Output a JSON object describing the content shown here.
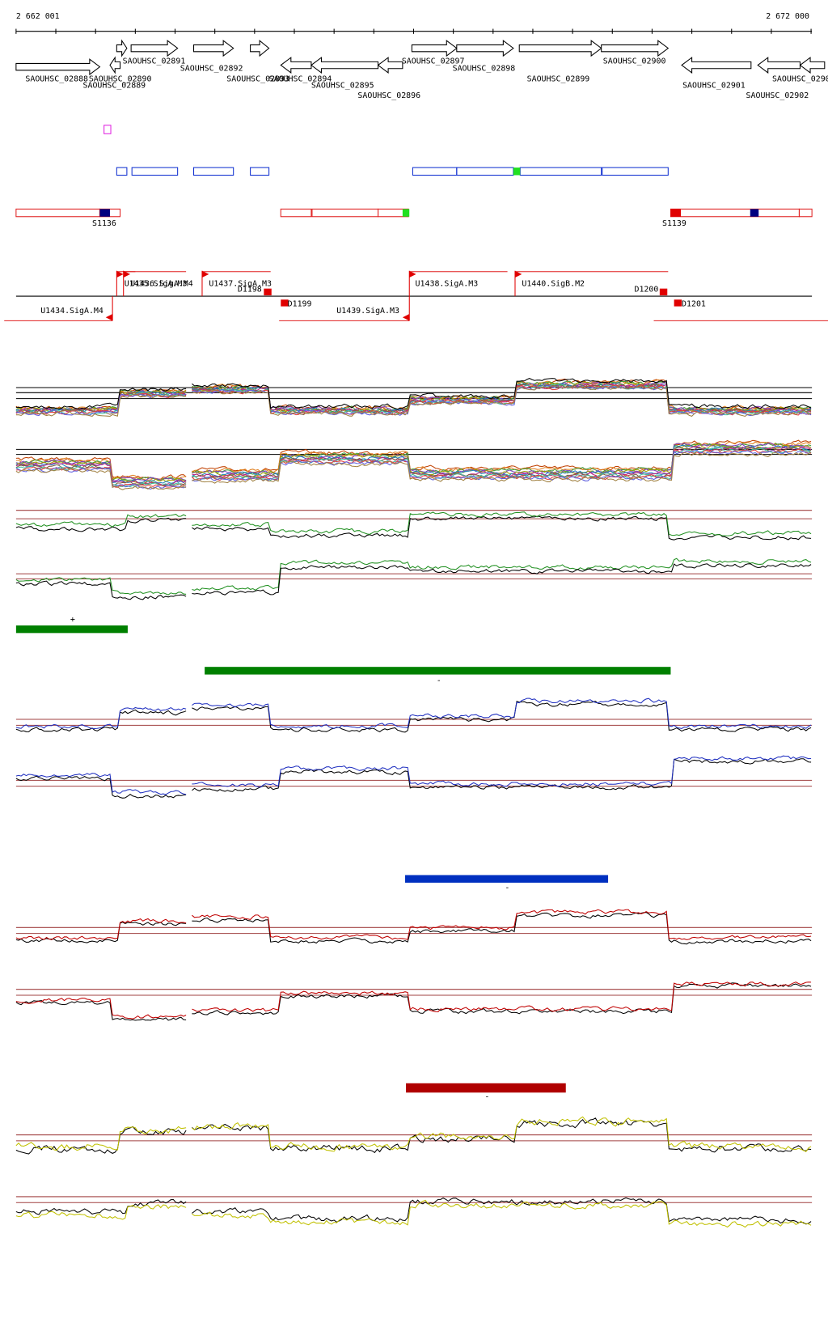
{
  "ruler": {
    "start": "2 662 001",
    "end": "2 672 000"
  },
  "genes": [
    "SAOUHSC_02888",
    "SAOUHSC_02889",
    "SAOUHSC_02890",
    "SAOUHSC_02891",
    "SAOUHSC_02892",
    "SAOUHSC_02893",
    "SAOUHSC_02894",
    "SAOUHSC_02895",
    "SAOUHSC_02896",
    "SAOUHSC_02897",
    "SAOUHSC_02898",
    "SAOUHSC_02899",
    "SAOUHSC_02900",
    "SAOUHSC_02901",
    "SAOUHSC_02902",
    "SAOUHSC_0290"
  ],
  "segments": [
    "S1136",
    "S1139"
  ],
  "promoters": [
    "U1434.SigA.M4",
    "U1435.SigA.M3",
    "U1436.SigA.M4",
    "U1437.SigA.M3",
    "U1438.SigA.M3",
    "U1439.SigA.M3",
    "U1440.SigB.M2"
  ],
  "terminators": [
    "D1198",
    "D1199",
    "D1200",
    "D1201"
  ],
  "conditions": [
    "+",
    "-",
    "-",
    "-"
  ]
}
